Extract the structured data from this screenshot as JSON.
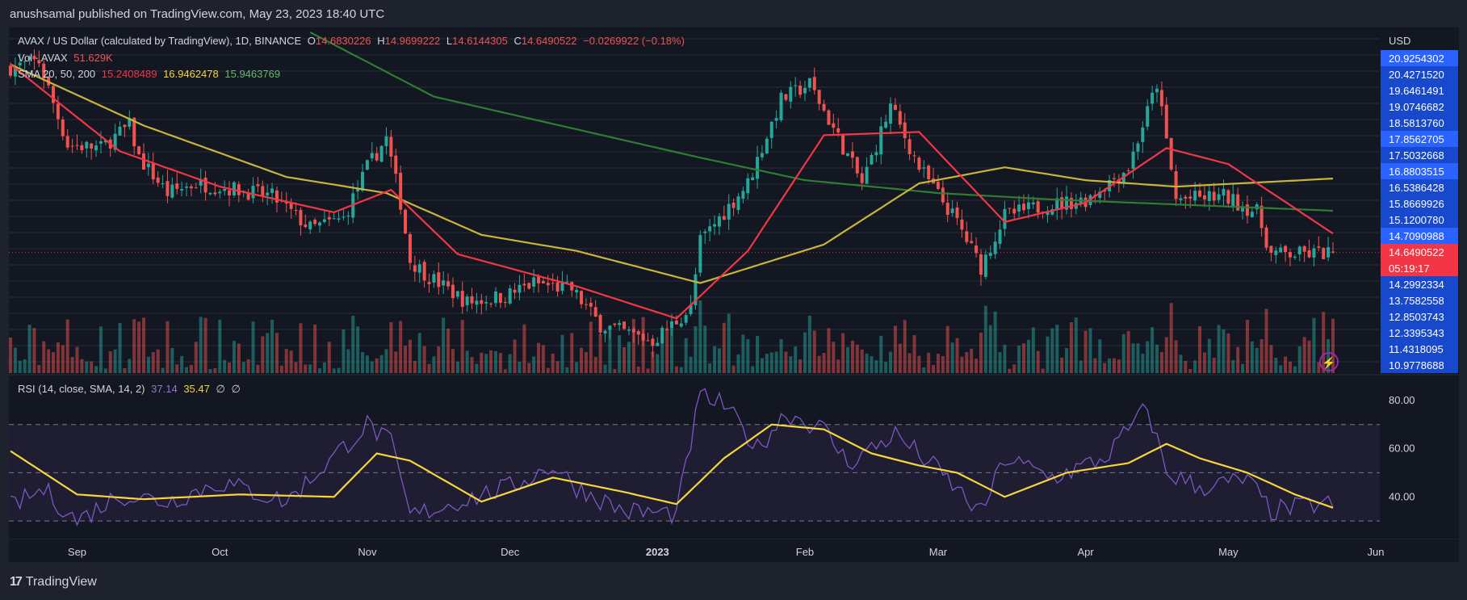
{
  "header": {
    "published": "anushsamal published on TradingView.com, May 23, 2023 18:40 UTC"
  },
  "footer": {
    "brand": "TradingView",
    "logo_glyph": "17"
  },
  "legend": {
    "symbol": "AVAX / US Dollar (calculated by TradingView), 1D, BINANCE",
    "o_label": "O",
    "o_value": "14.6830226",
    "h_label": "H",
    "h_value": "14.9699222",
    "l_label": "L",
    "l_value": "14.6144305",
    "c_label": "C",
    "c_value": "14.6490522",
    "change": "−0.0269922 (−0.18%)",
    "vol_label": "Vol · AVAX",
    "vol_value": "51.629K",
    "sma_label": "SMA 20, 50, 200",
    "sma20": "15.2408489",
    "sma50": "16.9462478",
    "sma200": "15.9463769",
    "rsi_label": "RSI (14, close, SMA, 14, 2)",
    "rsi_value": "37.14",
    "rsi_sma_value": "35.47",
    "rsi_extra1": "∅",
    "rsi_extra2": "∅"
  },
  "price_axis": {
    "currency": "USD",
    "labels": [
      "20.9254302",
      "20.4271520",
      "19.6461491",
      "19.0746682",
      "18.5813760",
      "17.8562705",
      "17.5032668",
      "16.8803515",
      "16.5386428",
      "15.8669926",
      "15.1200780",
      "14.7090988",
      "14.6490522",
      "05:19:17",
      "14.2992334",
      "13.7582558",
      "12.8503743",
      "12.3395343",
      "11.4318095",
      "10.9778688"
    ]
  },
  "rsi_axis": {
    "labels": [
      "80.00",
      "60.00",
      "40.00"
    ]
  },
  "time_axis": {
    "labels": [
      "Sep",
      "Oct",
      "Nov",
      "Dec",
      "2023",
      "Feb",
      "Mar",
      "Apr",
      "May",
      "Jun"
    ]
  },
  "colors": {
    "up": "#26a69a",
    "down": "#ef5350",
    "sma20": "#f23645",
    "sma50": "#c9b53b",
    "sma200": "#2e7d32",
    "rsi": "#7e57c2",
    "rsi_sma": "#f5d63c",
    "price_tag": "#2962ff",
    "last_tag": "#f23645"
  },
  "chart_data": [
    {
      "type": "candlestick",
      "title": "AVAX / US Dollar (calculated by TradingView), 1D, BINANCE",
      "x_range": [
        "2022-08-18",
        "2023-05-23"
      ],
      "ylim": [
        10.9,
        21.5
      ],
      "x_ticks": [
        "Sep",
        "Oct",
        "Nov",
        "Dec",
        "2023",
        "Feb",
        "Mar",
        "Apr",
        "May",
        "Jun"
      ],
      "close_anchors": [
        [
          "2022-08-18",
          20.4
        ],
        [
          "2022-08-24",
          20.6
        ],
        [
          "2022-08-30",
          18.0
        ],
        [
          "2022-09-06",
          17.9
        ],
        [
          "2022-09-12",
          18.6
        ],
        [
          "2022-09-14",
          17.6
        ],
        [
          "2022-09-20",
          16.5
        ],
        [
          "2022-09-26",
          16.8
        ],
        [
          "2022-10-05",
          16.6
        ],
        [
          "2022-10-12",
          16.4
        ],
        [
          "2022-10-20",
          15.4
        ],
        [
          "2022-10-27",
          15.7
        ],
        [
          "2022-11-01",
          17.3
        ],
        [
          "2022-11-05",
          18.2
        ],
        [
          "2022-11-08",
          16.2
        ],
        [
          "2022-11-10",
          14.4
        ],
        [
          "2022-11-14",
          13.9
        ],
        [
          "2022-11-22",
          13.1
        ],
        [
          "2022-11-30",
          13.3
        ],
        [
          "2022-12-06",
          13.7
        ],
        [
          "2022-12-14",
          13.5
        ],
        [
          "2022-12-20",
          12.4
        ],
        [
          "2022-12-31",
          11.9
        ],
        [
          "2023-01-08",
          12.9
        ],
        [
          "2023-01-10",
          15.0
        ],
        [
          "2023-01-20",
          16.8
        ],
        [
          "2023-01-27",
          19.4
        ],
        [
          "2023-02-02",
          19.9
        ],
        [
          "2023-02-07",
          18.5
        ],
        [
          "2023-02-13",
          16.8
        ],
        [
          "2023-02-19",
          19.2
        ],
        [
          "2023-02-25",
          17.3
        ],
        [
          "2023-03-05",
          15.6
        ],
        [
          "2023-03-10",
          14.2
        ],
        [
          "2023-03-15",
          15.8
        ],
        [
          "2023-03-23",
          16.1
        ],
        [
          "2023-04-01",
          16.3
        ],
        [
          "2023-04-10",
          17.3
        ],
        [
          "2023-04-16",
          19.9
        ],
        [
          "2023-04-20",
          16.3
        ],
        [
          "2023-04-30",
          16.4
        ],
        [
          "2023-05-07",
          15.9
        ],
        [
          "2023-05-10",
          14.6
        ],
        [
          "2023-05-16",
          14.6
        ],
        [
          "2023-05-23",
          14.65
        ]
      ],
      "sma20_anchors": [
        [
          "2022-08-18",
          20.5
        ],
        [
          "2022-09-10",
          17.8
        ],
        [
          "2022-10-01",
          16.7
        ],
        [
          "2022-10-25",
          15.9
        ],
        [
          "2022-11-06",
          16.6
        ],
        [
          "2022-11-20",
          14.6
        ],
        [
          "2022-12-15",
          13.6
        ],
        [
          "2023-01-05",
          12.6
        ],
        [
          "2023-01-20",
          14.7
        ],
        [
          "2023-02-05",
          18.3
        ],
        [
          "2023-02-25",
          18.4
        ],
        [
          "2023-03-15",
          15.6
        ],
        [
          "2023-04-01",
          16.2
        ],
        [
          "2023-04-18",
          17.9
        ],
        [
          "2023-05-01",
          17.4
        ],
        [
          "2023-05-23",
          15.24
        ]
      ],
      "sma50_anchors": [
        [
          "2022-08-18",
          20.5
        ],
        [
          "2022-09-15",
          18.6
        ],
        [
          "2022-10-15",
          17.0
        ],
        [
          "2022-11-05",
          16.5
        ],
        [
          "2022-11-25",
          15.2
        ],
        [
          "2022-12-15",
          14.7
        ],
        [
          "2023-01-10",
          13.7
        ],
        [
          "2023-02-05",
          14.9
        ],
        [
          "2023-02-25",
          16.8
        ],
        [
          "2023-03-15",
          17.3
        ],
        [
          "2023-04-01",
          16.9
        ],
        [
          "2023-04-20",
          16.7
        ],
        [
          "2023-05-23",
          16.95
        ]
      ],
      "sma200_anchors": [
        [
          "2022-10-20",
          21.5
        ],
        [
          "2022-11-15",
          19.5
        ],
        [
          "2023-01-10",
          17.6
        ],
        [
          "2023-02-01",
          16.9
        ],
        [
          "2023-03-01",
          16.5
        ],
        [
          "2023-03-25",
          16.3
        ],
        [
          "2023-05-23",
          15.95
        ]
      ],
      "last": {
        "open": 14.6830226,
        "high": 14.9699222,
        "low": 14.6144305,
        "close": 14.6490522
      }
    },
    {
      "type": "line",
      "title": "RSI (14, close, SMA, 14, 2)",
      "ylim": [
        23,
        90
      ],
      "levels": [
        70,
        50,
        30
      ],
      "rsi_anchors": [
        [
          "2022-08-18",
          36
        ],
        [
          "2022-08-25",
          43
        ],
        [
          "2022-09-01",
          30
        ],
        [
          "2022-09-10",
          41
        ],
        [
          "2022-09-20",
          38
        ],
        [
          "2022-10-01",
          46
        ],
        [
          "2022-10-15",
          38
        ],
        [
          "2022-11-01",
          70
        ],
        [
          "2022-11-06",
          62
        ],
        [
          "2022-11-10",
          32
        ],
        [
          "2022-11-20",
          38
        ],
        [
          "2022-12-01",
          44
        ],
        [
          "2022-12-10",
          53
        ],
        [
          "2022-12-15",
          44
        ],
        [
          "2022-12-25",
          34
        ],
        [
          "2023-01-05",
          33
        ],
        [
          "2023-01-10",
          82
        ],
        [
          "2023-01-15",
          78
        ],
        [
          "2023-01-22",
          60
        ],
        [
          "2023-01-28",
          75
        ],
        [
          "2023-02-05",
          68
        ],
        [
          "2023-02-10",
          54
        ],
        [
          "2023-02-20",
          66
        ],
        [
          "2023-03-01",
          51
        ],
        [
          "2023-03-10",
          33
        ],
        [
          "2023-03-15",
          56
        ],
        [
          "2023-03-25",
          48
        ],
        [
          "2023-04-05",
          56
        ],
        [
          "2023-04-14",
          77
        ],
        [
          "2023-04-18",
          50
        ],
        [
          "2023-04-25",
          44
        ],
        [
          "2023-05-05",
          47
        ],
        [
          "2023-05-10",
          34
        ],
        [
          "2023-05-20",
          37
        ],
        [
          "2023-05-23",
          37.14
        ]
      ],
      "sma_anchors": [
        [
          "2022-08-18",
          59
        ],
        [
          "2022-09-01",
          41
        ],
        [
          "2022-09-15",
          39
        ],
        [
          "2022-10-05",
          41
        ],
        [
          "2022-10-25",
          40
        ],
        [
          "2022-11-03",
          58
        ],
        [
          "2022-11-10",
          55
        ],
        [
          "2022-11-25",
          38
        ],
        [
          "2022-12-10",
          48
        ],
        [
          "2022-12-25",
          42
        ],
        [
          "2023-01-05",
          37
        ],
        [
          "2023-01-15",
          56
        ],
        [
          "2023-01-25",
          70
        ],
        [
          "2023-02-05",
          68
        ],
        [
          "2023-02-15",
          58
        ],
        [
          "2023-02-25",
          53
        ],
        [
          "2023-03-05",
          50
        ],
        [
          "2023-03-15",
          40
        ],
        [
          "2023-03-28",
          50
        ],
        [
          "2023-04-10",
          54
        ],
        [
          "2023-04-18",
          62
        ],
        [
          "2023-04-25",
          56
        ],
        [
          "2023-05-05",
          50
        ],
        [
          "2023-05-15",
          41
        ],
        [
          "2023-05-23",
          35.47
        ]
      ]
    }
  ]
}
